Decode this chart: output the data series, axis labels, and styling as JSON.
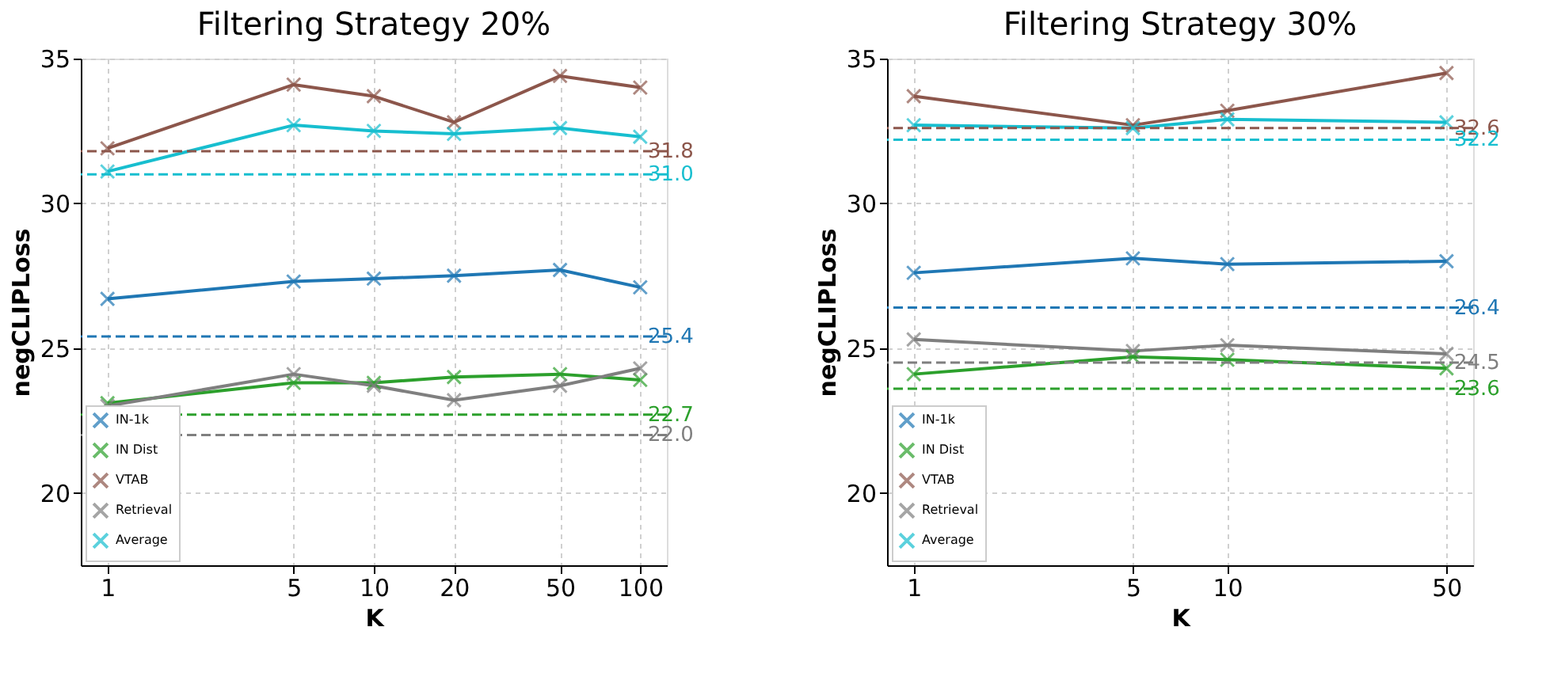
{
  "chart_data": [
    {
      "type": "line",
      "title": "Filtering Strategy 20%",
      "xlabel": "K",
      "ylabel": "negCLIPLoss",
      "x": [
        1,
        5,
        10,
        20,
        50,
        100
      ],
      "log": "x",
      "xlim": [
        0.794,
        125.9
      ],
      "xticks": [
        1,
        5,
        10,
        20,
        50,
        100
      ],
      "ylim": [
        17.5,
        35
      ],
      "yticks": [
        20,
        25,
        30,
        35
      ],
      "grid": true,
      "legend": "bottom left",
      "marker": "cross",
      "line_style": "solid",
      "series": [
        {
          "name": "IN-1k",
          "color": "#1f77b4",
          "values": [
            26.7,
            27.3,
            27.4,
            27.5,
            27.7,
            27.1
          ]
        },
        {
          "name": "IN Dist",
          "color": "#2ca02c",
          "values": [
            23.1,
            23.8,
            23.8,
            24.0,
            24.1,
            23.9
          ]
        },
        {
          "name": "VTAB",
          "color": "#8c564b",
          "values": [
            31.9,
            34.1,
            33.7,
            32.8,
            34.4,
            34.0
          ]
        },
        {
          "name": "Retrieval",
          "color": "#7f7f7f",
          "values": [
            23.0,
            24.1,
            23.7,
            23.2,
            23.7,
            24.3
          ]
        },
        {
          "name": "Average",
          "color": "#17becf",
          "values": [
            31.1,
            32.7,
            32.5,
            32.4,
            32.6,
            32.3
          ]
        }
      ],
      "ref_lines": [
        {
          "axis": "y",
          "value": 25.4,
          "label": "25.4",
          "color": "#1f77b4",
          "line_style": "dashed"
        },
        {
          "axis": "y",
          "value": 22.7,
          "label": "22.7",
          "color": "#2ca02c",
          "line_style": "dashed"
        },
        {
          "axis": "y",
          "value": 31.8,
          "label": "31.8",
          "color": "#8c564b",
          "line_style": "dashed"
        },
        {
          "axis": "y",
          "value": 22.0,
          "label": "22.0",
          "color": "#7f7f7f",
          "line_style": "dashed"
        },
        {
          "axis": "y",
          "value": 31.0,
          "label": "31.0",
          "color": "#17becf",
          "line_style": "dashed"
        }
      ]
    },
    {
      "type": "line",
      "title": "Filtering Strategy 30%",
      "xlabel": "K",
      "ylabel": "negCLIPLoss",
      "x": [
        1,
        5,
        10,
        50
      ],
      "log": "x",
      "xlim": [
        0.822,
        60.8
      ],
      "xticks": [
        1,
        5,
        10,
        50
      ],
      "ylim": [
        17.5,
        35
      ],
      "yticks": [
        20,
        25,
        30,
        35
      ],
      "grid": true,
      "legend": "bottom left",
      "marker": "cross",
      "line_style": "solid",
      "series": [
        {
          "name": "IN-1k",
          "color": "#1f77b4",
          "values": [
            27.6,
            28.1,
            27.9,
            28.0
          ]
        },
        {
          "name": "IN Dist",
          "color": "#2ca02c",
          "values": [
            24.1,
            24.7,
            24.6,
            24.3
          ]
        },
        {
          "name": "VTAB",
          "color": "#8c564b",
          "values": [
            33.7,
            32.7,
            33.2,
            34.5
          ]
        },
        {
          "name": "Retrieval",
          "color": "#7f7f7f",
          "values": [
            25.3,
            24.9,
            25.1,
            24.8
          ]
        },
        {
          "name": "Average",
          "color": "#17becf",
          "values": [
            32.7,
            32.6,
            32.9,
            32.8
          ]
        }
      ],
      "ref_lines": [
        {
          "axis": "y",
          "value": 26.4,
          "label": "26.4",
          "color": "#1f77b4",
          "line_style": "dashed"
        },
        {
          "axis": "y",
          "value": 23.6,
          "label": "23.6",
          "color": "#2ca02c",
          "line_style": "dashed"
        },
        {
          "axis": "y",
          "value": 32.6,
          "label": "32.6",
          "color": "#8c564b",
          "line_style": "dashed"
        },
        {
          "axis": "y",
          "value": 24.5,
          "label": "24.5",
          "color": "#7f7f7f",
          "line_style": "dashed"
        },
        {
          "axis": "y",
          "value": 32.2,
          "label": "32.2",
          "color": "#17becf",
          "line_style": "dashed"
        }
      ]
    }
  ]
}
